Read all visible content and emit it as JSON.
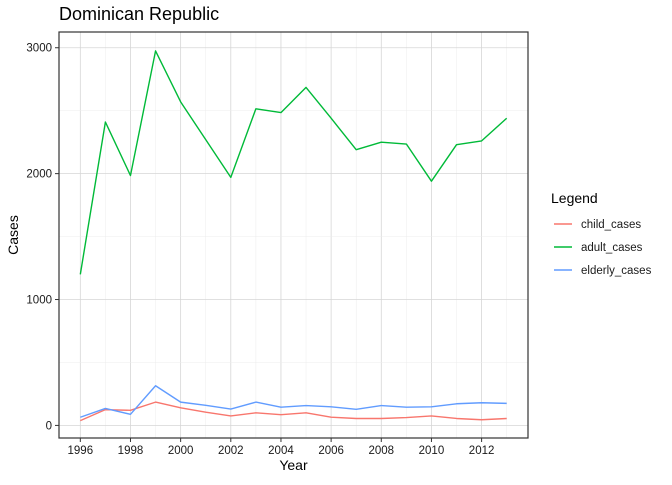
{
  "chart_data": {
    "type": "line",
    "title": "Dominican Republic",
    "xlabel": "Year",
    "ylabel": "Cases",
    "x": [
      1996,
      1997,
      1998,
      1999,
      2000,
      2001,
      2002,
      2003,
      2004,
      2005,
      2006,
      2007,
      2008,
      2009,
      2010,
      2011,
      2012,
      2013
    ],
    "xticks": [
      1996,
      1998,
      2000,
      2002,
      2004,
      2006,
      2008,
      2010,
      2012
    ],
    "xtick_labels": [
      "1996",
      "1998",
      "2000",
      "2002",
      "2004",
      "2006",
      "2008",
      "2010",
      "2012"
    ],
    "yticks": [
      0,
      1000,
      2000,
      3000
    ],
    "ytick_labels": [
      "0",
      "1000",
      "2000",
      "3000"
    ],
    "xlim": [
      1995.15,
      2013.85
    ],
    "ylim": [
      -100,
      3125
    ],
    "grid": true,
    "legend": {
      "title": "Legend",
      "position": "right"
    },
    "series": [
      {
        "name": "child_cases",
        "color": "#F8766D",
        "values": [
          38,
          125,
          120,
          185,
          140,
          105,
          75,
          100,
          85,
          100,
          65,
          55,
          55,
          62,
          75,
          55,
          45,
          55
        ]
      },
      {
        "name": "adult_cases",
        "color": "#00BA38",
        "values": [
          1200,
          2410,
          1985,
          2975,
          2570,
          2270,
          1970,
          2515,
          2485,
          2685,
          2440,
          2190,
          2250,
          2235,
          1940,
          2230,
          2260,
          2440
        ]
      },
      {
        "name": "elderly_cases",
        "color": "#619CFF",
        "values": [
          65,
          135,
          88,
          315,
          185,
          160,
          130,
          185,
          145,
          158,
          148,
          128,
          158,
          145,
          148,
          172,
          180,
          175
        ]
      }
    ]
  }
}
